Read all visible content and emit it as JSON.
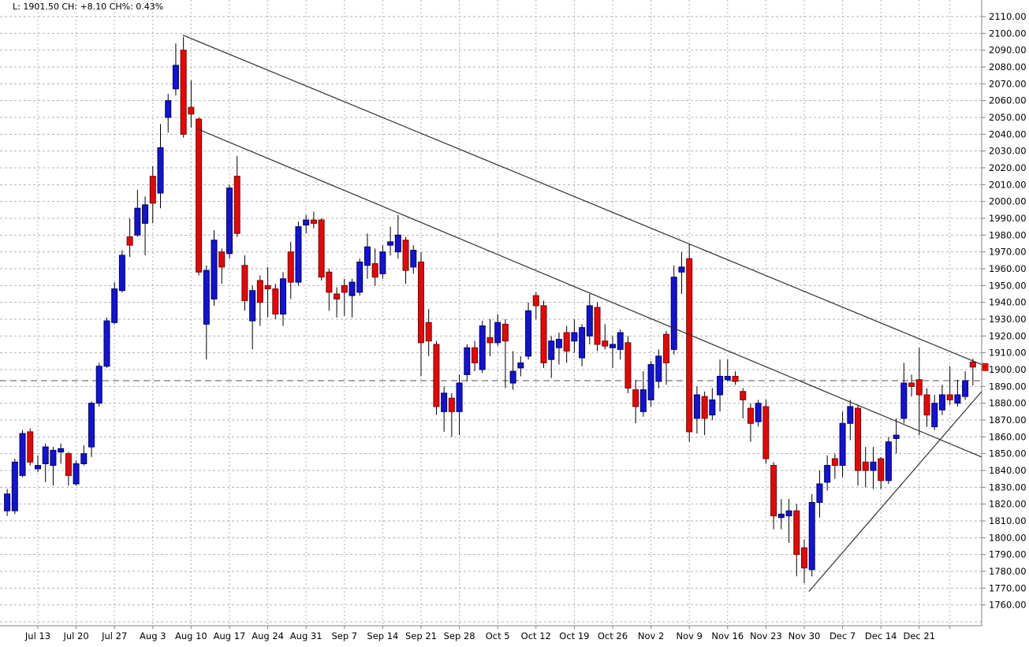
{
  "header": {
    "quote_label": "L: 1901.50 CH: +8.10 CH%: 0.43%"
  },
  "chart_data": {
    "type": "candlestick",
    "title": "",
    "xlabel": "",
    "ylabel": "",
    "legend": "none",
    "grid": "dashed",
    "y_axis": {
      "min": 1760,
      "max": 2110,
      "step": 10,
      "decimals": 2,
      "grid_extend_to": 1750,
      "side": "right"
    },
    "x_axis": {
      "week_labels": [
        {
          "label": "Jul 13",
          "index": 4
        },
        {
          "label": "Jul 20",
          "index": 9
        },
        {
          "label": "Jul 27",
          "index": 14
        },
        {
          "label": "Aug 3",
          "index": 19
        },
        {
          "label": "Aug 10",
          "index": 24
        },
        {
          "label": "Aug 17",
          "index": 29
        },
        {
          "label": "Aug 24",
          "index": 34
        },
        {
          "label": "Aug 31",
          "index": 39
        },
        {
          "label": "Sep 7",
          "index": 44
        },
        {
          "label": "Sep 14",
          "index": 49
        },
        {
          "label": "Sep 21",
          "index": 54
        },
        {
          "label": "Sep 28",
          "index": 59
        },
        {
          "label": "Oct 5",
          "index": 64
        },
        {
          "label": "Oct 12",
          "index": 69
        },
        {
          "label": "Oct 19",
          "index": 74
        },
        {
          "label": "Oct 26",
          "index": 79
        },
        {
          "label": "Nov 2",
          "index": 84
        },
        {
          "label": "Nov 9",
          "index": 89
        },
        {
          "label": "Nov 16",
          "index": 94
        },
        {
          "label": "Nov 23",
          "index": 99
        },
        {
          "label": "Nov 30",
          "index": 104
        },
        {
          "label": "Dec 7",
          "index": 109
        },
        {
          "label": "Dec 14",
          "index": 114
        },
        {
          "label": "Dec 21",
          "index": 119
        }
      ],
      "extra_grid_indices": [
        123
      ]
    },
    "last_price": 1901.5,
    "prev_close": 1893.4,
    "price_change": 8.1,
    "price_change_pct": 0.43,
    "trendlines": [
      {
        "name": "upper-channel-line",
        "from": {
          "index": 22.9,
          "price": 2099
        },
        "to": {
          "index": 127.2,
          "price": 1903
        }
      },
      {
        "name": "lower-channel-line",
        "from": {
          "index": 24.9,
          "price": 2043
        },
        "to": {
          "index": 127.2,
          "price": 1848
        }
      },
      {
        "name": "ascending-support-line",
        "from": {
          "index": 104.6,
          "price": 1768
        },
        "to": {
          "index": 127.2,
          "price": 1887
        }
      }
    ],
    "colors": {
      "up_fill": "#1414c8",
      "up_stroke": "#00006e",
      "down_fill": "#de0a0a",
      "down_stroke": "#7e0000",
      "wick": "#000000",
      "grid": "#b3b3b3",
      "axis": "#808080",
      "trendline": "#303030",
      "prev_close_line": "#808080",
      "price_tag": "#de0a0a",
      "background": "#ffffff",
      "text": "#000000"
    },
    "candles": {
      "columns": [
        "date",
        "open",
        "high",
        "low",
        "close"
      ],
      "rows": [
        [
          "Jul 7",
          1816,
          1829,
          1813,
          1826
        ],
        [
          "Jul 8",
          1816,
          1847,
          1814,
          1845
        ],
        [
          "Jul 9",
          1837,
          1864,
          1836,
          1862
        ],
        [
          "Jul 10",
          1863,
          1865,
          1843,
          1845
        ],
        [
          "Jul 13",
          1841,
          1849,
          1839,
          1843
        ],
        [
          "Jul 14",
          1844,
          1856,
          1833,
          1854
        ],
        [
          "Jul 15",
          1843,
          1854,
          1831,
          1852
        ],
        [
          "Jul 16",
          1851,
          1856,
          1844,
          1853
        ],
        [
          "Jul 17",
          1850,
          1851,
          1831,
          1837
        ],
        [
          "Jul 20",
          1832,
          1846,
          1831,
          1844
        ],
        [
          "Jul 21",
          1844,
          1855,
          1843,
          1850
        ],
        [
          "Jul 22",
          1854,
          1881,
          1848,
          1880
        ],
        [
          "Jul 23",
          1880,
          1904,
          1878,
          1902
        ],
        [
          "Jul 24",
          1902,
          1931,
          1901,
          1929
        ],
        [
          "Jul 27",
          1928,
          1952,
          1927,
          1948
        ],
        [
          "Jul 28",
          1947,
          1971,
          1946,
          1968
        ],
        [
          "Jul 29",
          1979,
          1990,
          1967,
          1974
        ],
        [
          "Jul 30",
          1980,
          2007,
          1979,
          1996
        ],
        [
          "Jul 31",
          1987,
          2003,
          1968,
          1998
        ],
        [
          "Aug 3",
          2015,
          2021,
          1987,
          1999
        ],
        [
          "Aug 4",
          2005,
          2046,
          1996,
          2032
        ],
        [
          "Aug 5",
          2050,
          2064,
          2041,
          2060
        ],
        [
          "Aug 6",
          2067,
          2094,
          2063,
          2081
        ],
        [
          "Aug 7",
          2090,
          2098,
          2038,
          2040
        ],
        [
          "Aug 10",
          2056,
          2072,
          2044,
          2052
        ],
        [
          "Aug 11",
          2049,
          2050,
          1956,
          1958
        ],
        [
          "Aug 12",
          1927,
          1962,
          1906,
          1959
        ],
        [
          "Aug 13",
          1942,
          1983,
          1938,
          1977
        ],
        [
          "Aug 14",
          1970,
          1972,
          1951,
          1961
        ],
        [
          "Aug 17",
          1969,
          2010,
          1966,
          2008
        ],
        [
          "Aug 18",
          2015,
          2027,
          1979,
          1981
        ],
        [
          "Aug 19",
          1962,
          1968,
          1935,
          1941
        ],
        [
          "Aug 20",
          1929,
          1950,
          1912,
          1947
        ],
        [
          "Aug 21",
          1953,
          1956,
          1926,
          1940
        ],
        [
          "Aug 24",
          1950,
          1961,
          1931,
          1948
        ],
        [
          "Aug 25",
          1948,
          1951,
          1930,
          1933
        ],
        [
          "Aug 26",
          1933,
          1958,
          1926,
          1954
        ],
        [
          "Aug 27",
          1970,
          1976,
          1942,
          1952
        ],
        [
          "Aug 28",
          1952,
          1988,
          1950,
          1985
        ],
        [
          "Aug 31",
          1986,
          1992,
          1981,
          1989
        ],
        [
          "Sep 1",
          1989,
          1994,
          1984,
          1987
        ],
        [
          "Sep 2",
          1989,
          1990,
          1953,
          1955
        ],
        [
          "Sep 3",
          1958,
          1960,
          1935,
          1946
        ],
        [
          "Sep 4",
          1945,
          1949,
          1931,
          1942
        ],
        [
          "Sep 7",
          1950,
          1954,
          1932,
          1946
        ],
        [
          "Sep 8",
          1944,
          1954,
          1931,
          1952
        ],
        [
          "Sep 9",
          1946,
          1966,
          1944,
          1964
        ],
        [
          "Sep 10",
          1962,
          1981,
          1954,
          1973
        ],
        [
          "Sep 11",
          1963,
          1972,
          1950,
          1955
        ],
        [
          "Sep 14",
          1957,
          1974,
          1954,
          1970
        ],
        [
          "Sep 15",
          1974,
          1985,
          1968,
          1976
        ],
        [
          "Sep 16",
          1970,
          1992,
          1966,
          1980
        ],
        [
          "Sep 17",
          1977,
          1979,
          1951,
          1959
        ],
        [
          "Sep 18",
          1961,
          1974,
          1957,
          1971
        ],
        [
          "Sep 21",
          1964,
          1970,
          1896,
          1916
        ],
        [
          "Sep 22",
          1928,
          1936,
          1908,
          1917
        ],
        [
          "Sep 23",
          1915,
          1917,
          1873,
          1878
        ],
        [
          "Sep 24",
          1875,
          1890,
          1863,
          1886
        ],
        [
          "Sep 25",
          1883,
          1886,
          1860,
          1875
        ],
        [
          "Sep 28",
          1875,
          1897,
          1861,
          1892
        ],
        [
          "Sep 29",
          1897,
          1915,
          1893,
          1913
        ],
        [
          "Sep 30",
          1913,
          1917,
          1899,
          1904
        ],
        [
          "Oct 1",
          1900,
          1929,
          1898,
          1926
        ],
        [
          "Oct 2",
          1919,
          1930,
          1908,
          1916
        ],
        [
          "Oct 5",
          1916,
          1933,
          1914,
          1928
        ],
        [
          "Oct 6",
          1927,
          1930,
          1889,
          1917
        ],
        [
          "Oct 7",
          1892,
          1911,
          1888,
          1899
        ],
        [
          "Oct 8",
          1901,
          1908,
          1896,
          1904
        ],
        [
          "Oct 9",
          1908,
          1940,
          1906,
          1935
        ],
        [
          "Oct 12",
          1944,
          1946,
          1930,
          1938
        ],
        [
          "Oct 13",
          1938,
          1941,
          1901,
          1904
        ],
        [
          "Oct 14",
          1906,
          1920,
          1895,
          1917
        ],
        [
          "Oct 15",
          1913,
          1922,
          1903,
          1918
        ],
        [
          "Oct 16",
          1922,
          1926,
          1904,
          1911
        ],
        [
          "Oct 19",
          1917,
          1930,
          1910,
          1922
        ],
        [
          "Oct 20",
          1907,
          1927,
          1902,
          1925
        ],
        [
          "Oct 21",
          1920,
          1945,
          1915,
          1938
        ],
        [
          "Oct 22",
          1937,
          1940,
          1911,
          1915
        ],
        [
          "Oct 23",
          1917,
          1927,
          1912,
          1914
        ],
        [
          "Oct 26",
          1913,
          1920,
          1901,
          1915
        ],
        [
          "Oct 27",
          1912,
          1924,
          1906,
          1922
        ],
        [
          "Oct 28",
          1916,
          1920,
          1886,
          1889
        ],
        [
          "Oct 29",
          1888,
          1894,
          1868,
          1878
        ],
        [
          "Oct 30",
          1875,
          1899,
          1872,
          1888
        ],
        [
          "Nov 2",
          1882,
          1905,
          1878,
          1903
        ],
        [
          "Nov 3",
          1893,
          1912,
          1889,
          1908
        ],
        [
          "Nov 4",
          1921,
          1923,
          1891,
          1904
        ],
        [
          "Nov 5",
          1912,
          1962,
          1909,
          1955
        ],
        [
          "Nov 6",
          1958,
          1970,
          1945,
          1961
        ],
        [
          "Nov 9",
          1966,
          1975,
          1857,
          1863
        ],
        [
          "Nov 10",
          1871,
          1890,
          1862,
          1885
        ],
        [
          "Nov 11",
          1884,
          1887,
          1861,
          1871
        ],
        [
          "Nov 12",
          1873,
          1889,
          1870,
          1882
        ],
        [
          "Nov 13",
          1885,
          1906,
          1875,
          1896
        ],
        [
          "Nov 16",
          1894,
          1906,
          1893,
          1896
        ],
        [
          "Nov 17",
          1896,
          1899,
          1891,
          1893
        ],
        [
          "Nov 18",
          1887,
          1889,
          1871,
          1882
        ],
        [
          "Nov 19",
          1877,
          1880,
          1857,
          1868
        ],
        [
          "Nov 20",
          1869,
          1882,
          1866,
          1880
        ],
        [
          "Nov 23",
          1878,
          1882,
          1844,
          1847
        ],
        [
          "Nov 24",
          1843,
          1845,
          1805,
          1813
        ],
        [
          "Nov 25",
          1812,
          1823,
          1805,
          1814
        ],
        [
          "Nov 26",
          1813,
          1823,
          1797,
          1816
        ],
        [
          "Nov 27",
          1816,
          1820,
          1777,
          1790
        ],
        [
          "Nov 30",
          1794,
          1799,
          1773,
          1782
        ],
        [
          "Dec 1",
          1781,
          1826,
          1777,
          1821
        ],
        [
          "Dec 2",
          1821,
          1840,
          1812,
          1832
        ],
        [
          "Dec 3",
          1833,
          1849,
          1828,
          1843
        ],
        [
          "Dec 4",
          1847,
          1850,
          1835,
          1843
        ],
        [
          "Dec 7",
          1843,
          1875,
          1836,
          1868
        ],
        [
          "Dec 8",
          1868,
          1882,
          1858,
          1878
        ],
        [
          "Dec 9",
          1877,
          1879,
          1831,
          1840
        ],
        [
          "Dec 10",
          1845,
          1854,
          1830,
          1840
        ],
        [
          "Dec 11",
          1840,
          1854,
          1829,
          1845
        ],
        [
          "Dec 14",
          1847,
          1848,
          1829,
          1834
        ],
        [
          "Dec 15",
          1834,
          1860,
          1832,
          1857
        ],
        [
          "Dec 16",
          1859,
          1871,
          1850,
          1861
        ],
        [
          "Dec 17",
          1871,
          1904,
          1868,
          1892
        ],
        [
          "Dec 18",
          1892,
          1897,
          1884,
          1890
        ],
        [
          "Dec 21",
          1894,
          1913,
          1861,
          1885
        ],
        [
          "Dec 22",
          1885,
          1889,
          1866,
          1873
        ],
        [
          "Dec 23",
          1866,
          1885,
          1864,
          1880
        ],
        [
          "Dec 24",
          1876,
          1891,
          1873,
          1885
        ],
        [
          "Dec 28",
          1885,
          1902,
          1879,
          1882
        ],
        [
          "Dec 29",
          1880,
          1894,
          1878,
          1885
        ],
        [
          "Dec 30",
          1884,
          1899,
          1882,
          1893.4
        ],
        [
          "Dec 31",
          1904.5,
          1906.5,
          1890.5,
          1901.5
        ]
      ]
    }
  }
}
